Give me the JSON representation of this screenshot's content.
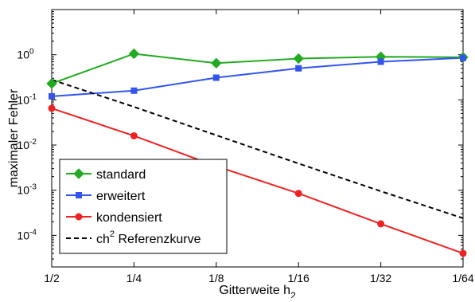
{
  "chart_data": {
    "type": "line",
    "xlabel": "Gitterweite h",
    "xlabel_sub": "2",
    "ylabel": "maximaler Fehler",
    "y_scale": "log",
    "ylim": [
      2e-05,
      10
    ],
    "categories": [
      "1/2",
      "1/4",
      "1/8",
      "1/16",
      "1/32",
      "1/64"
    ],
    "y_ticks": [
      {
        "value": 0.0001,
        "base": "10",
        "exp": "-4"
      },
      {
        "value": 0.001,
        "base": "10",
        "exp": "-3"
      },
      {
        "value": 0.01,
        "base": "10",
        "exp": "-2"
      },
      {
        "value": 0.1,
        "base": "10",
        "exp": "-1"
      },
      {
        "value": 1,
        "base": "10",
        "exp": "0"
      }
    ],
    "series": [
      {
        "name": "standard",
        "color": "#22aa22",
        "marker": "diamond",
        "dash": false,
        "values": [
          0.23,
          1.05,
          0.65,
          0.82,
          0.9,
          0.88
        ]
      },
      {
        "name": "erweitert",
        "color": "#3355ee",
        "marker": "square",
        "dash": false,
        "values": [
          0.12,
          0.16,
          0.31,
          0.5,
          0.7,
          0.85
        ]
      },
      {
        "name": "kondensiert",
        "color": "#ee2222",
        "marker": "circle",
        "dash": false,
        "values": [
          0.065,
          0.016,
          0.0034,
          0.00085,
          0.00018,
          4e-05
        ]
      },
      {
        "name": "ch",
        "name_sup": "2",
        "name_suffix": " Referenzkurve",
        "color": "#000000",
        "marker": "none",
        "dash": true,
        "values": [
          0.28,
          0.07,
          0.0165,
          0.0039,
          0.00095,
          0.00024
        ]
      }
    ],
    "legend_position": "bottom-left",
    "grid": false
  }
}
